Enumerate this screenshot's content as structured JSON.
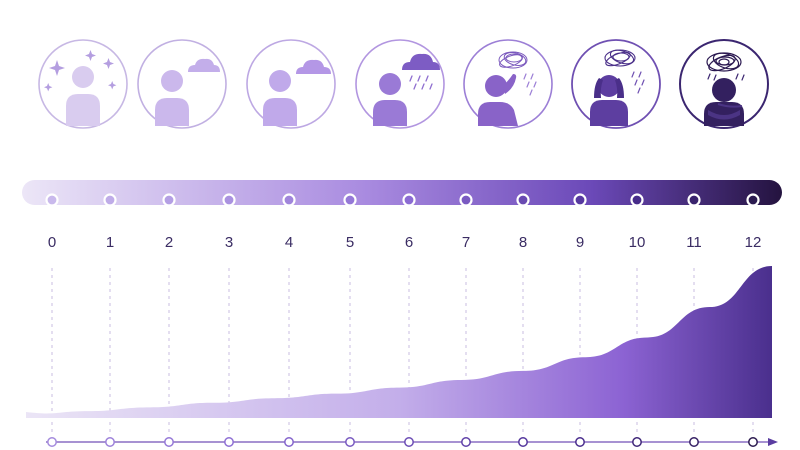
{
  "scale": {
    "ticks": [
      "0",
      "1",
      "2",
      "3",
      "4",
      "5",
      "6",
      "7",
      "8",
      "9",
      "10",
      "11",
      "12"
    ]
  },
  "icons": [
    {
      "name": "calm-person-sparkles-icon",
      "level": 0
    },
    {
      "name": "person-small-cloud-icon",
      "level": 1
    },
    {
      "name": "person-cloud-icon",
      "level": 2
    },
    {
      "name": "person-rain-cloud-icon",
      "level": 3
    },
    {
      "name": "person-scribble-cloud-rain-icon",
      "level": 4
    },
    {
      "name": "person-head-in-hands-storm-icon",
      "level": 5
    },
    {
      "name": "person-hugging-self-dark-storm-icon",
      "level": 6
    }
  ],
  "area_curve": {
    "values": [
      0.015,
      0.045,
      0.07,
      0.1,
      0.13,
      0.16,
      0.2,
      0.25,
      0.31,
      0.4,
      0.53,
      0.73,
      1.0
    ]
  },
  "colors": {
    "light": "#e7e0f5",
    "mid": "#a585df",
    "dark": "#2b1a4f",
    "accent": "#6b4fb0",
    "outline": "#a694c9"
  }
}
